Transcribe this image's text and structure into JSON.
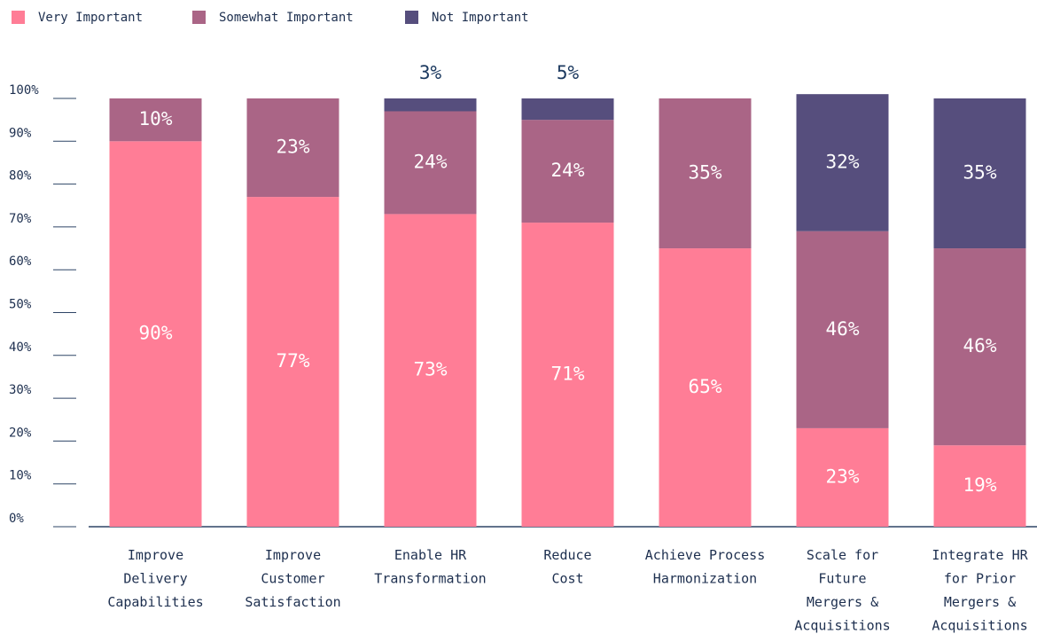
{
  "chart_data": {
    "type": "stacked-bar",
    "categories": [
      "Improve\nDelivery\nCapabilities",
      "Improve\nCustomer\nSatisfaction",
      "Enable HR\nTransformation",
      "Reduce\nCost",
      "Achieve Process\nHarmonization",
      "Scale for\nFuture\nMergers &\nAcquisitions",
      "Integrate HR\nfor Prior\nMergers &\nAcquisitions"
    ],
    "series": [
      {
        "name": "Very Important",
        "color": "#ff7d96",
        "values": [
          90,
          77,
          73,
          71,
          65,
          23,
          19
        ],
        "value_labels": [
          "90%",
          "77%",
          "73%",
          "71%",
          "65%",
          "23%",
          "19%"
        ]
      },
      {
        "name": "Somewhat Important",
        "color": "#aa6586",
        "values": [
          10,
          23,
          24,
          24,
          35,
          46,
          46
        ],
        "value_labels": [
          "10%",
          "23%",
          "24%",
          "24%",
          "35%",
          "46%",
          "46%"
        ]
      },
      {
        "name": "Not Important",
        "color": "#564e7d",
        "values": [
          null,
          null,
          3,
          5,
          null,
          32,
          35
        ],
        "value_labels": [
          null,
          null,
          "3%",
          "5%",
          null,
          "32%",
          "35%"
        ]
      }
    ],
    "ylim": [
      0,
      100
    ],
    "yticks": [
      {
        "value": 0,
        "label": "0%"
      },
      {
        "value": 10,
        "label": "10%"
      },
      {
        "value": 20,
        "label": "20%"
      },
      {
        "value": 30,
        "label": "30%"
      },
      {
        "value": 40,
        "label": "40%"
      },
      {
        "value": 50,
        "label": "50%"
      },
      {
        "value": 60,
        "label": "60%"
      },
      {
        "value": 70,
        "label": "70%"
      },
      {
        "value": 80,
        "label": "80%"
      },
      {
        "value": 90,
        "label": "90%"
      },
      {
        "value": 100,
        "label": "100%"
      }
    ],
    "legend": "top-left"
  }
}
